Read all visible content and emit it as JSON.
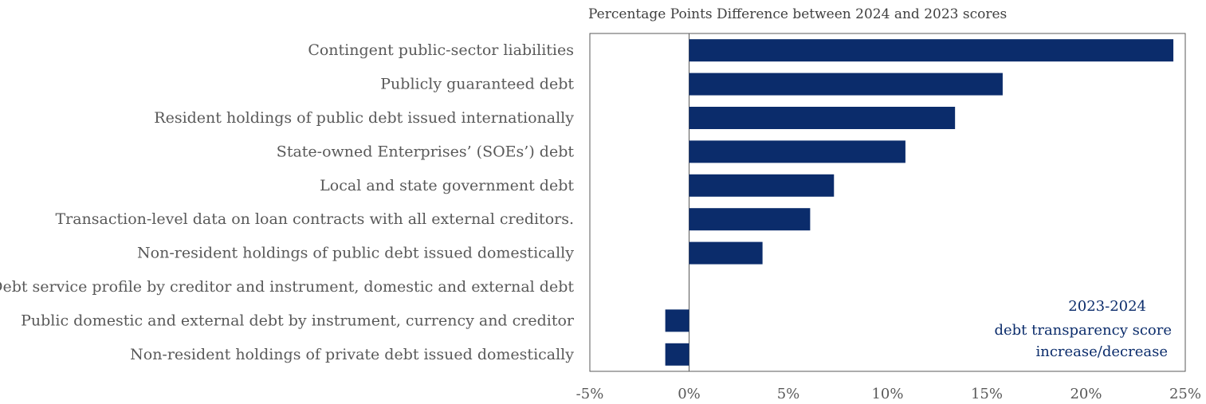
{
  "chart_data": {
    "type": "bar",
    "orientation": "horizontal",
    "title": "Percentage Points Difference between 2024 and 2023 scores",
    "categories": [
      "Contingent public-sector liabilities",
      "Publicly guaranteed debt ",
      "Resident holdings of public debt issued internationally",
      "State-owned Enterprises’ (SOEs’) debt",
      "Local and state government debt ",
      "Transaction-level data on loan contracts with all external creditors. ",
      "Non-resident holdings of public debt issued domestically",
      "Debt service profile by creditor and instrument, domestic and external debt",
      "Public domestic and external debt by instrument, currency and creditor",
      "Non-resident holdings of private debt issued domestically"
    ],
    "values": [
      24.4,
      15.8,
      13.4,
      10.9,
      7.3,
      6.1,
      3.7,
      0,
      -1.2,
      -1.2
    ],
    "xlim": [
      -5,
      25
    ],
    "xticks": [
      -5,
      0,
      5,
      10,
      15,
      20,
      25
    ],
    "xtick_labels": [
      "-5%",
      "0%",
      "5%",
      "10%",
      "15%",
      "20%",
      "25%"
    ],
    "annotation": [
      "2023-2024",
      "debt transparency score",
      "increase/decrease"
    ],
    "grid": false,
    "colors": {
      "bar": "#0b2c6b",
      "frame": "#595959",
      "text": "#595959"
    }
  }
}
